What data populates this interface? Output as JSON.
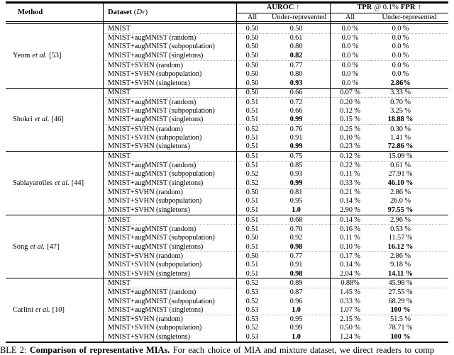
{
  "header": {
    "method": "Method",
    "dataset": {
      "label": "Dataset",
      "open": "(",
      "var": "D",
      "sup": "tr",
      "close": ")"
    },
    "auroc": "AUROC ↑",
    "tpr": {
      "tpr": "TPR",
      "at": "@ 0.1%",
      "fpr": "FPR",
      "arrow": "↑"
    },
    "sub": {
      "all": "All",
      "under": "Under-represented"
    }
  },
  "groups": [
    {
      "method": {
        "name": "Yeom",
        "etal": "et al.",
        "ref": "[53]"
      },
      "rows": [
        {
          "dataset": "MNIST",
          "values": [
            "0.50",
            "0.50",
            "0.0 %",
            "0.0 %"
          ],
          "bold": []
        },
        {
          "dataset": "MNIST+augMNIST (random)",
          "values": [
            "0.50",
            "0.61",
            "0.0 %",
            "0.0 %"
          ],
          "bold": []
        },
        {
          "dataset": "MNIST+augMNIST (subpopulation)",
          "values": [
            "0.50",
            "0.80",
            "0.0 %",
            "0.0 %"
          ],
          "bold": []
        },
        {
          "dataset": "MNIST+augMNIST (singletons)",
          "values": [
            "0.50",
            "0.82",
            "0.0 %",
            "0.0 %"
          ],
          "bold": [
            1
          ]
        },
        {
          "dataset": "MNIST+SVHN (random)",
          "values": [
            "0.50",
            "0.77",
            "0.0 %",
            "0.0 %"
          ],
          "bold": []
        },
        {
          "dataset": "MNIST+SVHN (subpopulation)",
          "values": [
            "0.50",
            "0.80",
            "0.0 %",
            "0.0 %"
          ],
          "bold": []
        },
        {
          "dataset": "MNIST+SVHN (singletons)",
          "values": [
            "0.50",
            "0.93",
            "0.0 %",
            "2.86%"
          ],
          "bold": [
            1,
            3
          ]
        }
      ]
    },
    {
      "method": {
        "name": "Shokri",
        "etal": "et al.",
        "ref": "[46]"
      },
      "rows": [
        {
          "dataset": "MNIST",
          "values": [
            "0.50",
            "0.66",
            "0.07 %",
            "3.33 %"
          ],
          "bold": []
        },
        {
          "dataset": "MNIST+augMNIST (random)",
          "values": [
            "0.51",
            "0.72",
            "0.20 %",
            "0.70 %"
          ],
          "bold": []
        },
        {
          "dataset": "MNIST+augMNIST (subpopulation)",
          "values": [
            "0.51",
            "0.66",
            "0.12 %",
            "3.25 %"
          ],
          "bold": []
        },
        {
          "dataset": "MNIST+augMNIST (singletons)",
          "values": [
            "0.51",
            "0.99",
            "0.15 %",
            "18.88 %"
          ],
          "bold": [
            1,
            3
          ]
        },
        {
          "dataset": "MNIST+SVHN (random)",
          "values": [
            "0.52",
            "0.76",
            "0.25 %",
            "0.30 %"
          ],
          "bold": []
        },
        {
          "dataset": "MNIST+SVHN (subpopulation)",
          "values": [
            "0.51",
            "0.91",
            "0.10 %",
            "1.41 %"
          ],
          "bold": []
        },
        {
          "dataset": "MNIST+SVHN (singletons)",
          "values": [
            "0.51",
            "0.99",
            "0.23 %",
            "72.86 %"
          ],
          "bold": [
            1,
            3
          ]
        }
      ]
    },
    {
      "method": {
        "name": "Sablayarolles",
        "etal": "et al.",
        "ref": "[44]"
      },
      "rows": [
        {
          "dataset": "MNIST",
          "values": [
            "0.51",
            "0.75",
            "0.12 %",
            "15.09 %"
          ],
          "bold": []
        },
        {
          "dataset": "MNIST+augMNIST (random)",
          "values": [
            "0.51",
            "0.85",
            "0.22 %",
            "0.61 %"
          ],
          "bold": []
        },
        {
          "dataset": "MNIST+augMNIST (subpopulation)",
          "values": [
            "0.52",
            "0.93",
            "0.11 %",
            "27.91 %"
          ],
          "bold": []
        },
        {
          "dataset": "MNIST+augMNIST (singletons)",
          "values": [
            "0.52",
            "0.99",
            "0.33 %",
            "46.10 %"
          ],
          "bold": [
            1,
            3
          ]
        },
        {
          "dataset": "MNIST+SVHN (random)",
          "values": [
            "0.50",
            "0.81",
            "0.21 %",
            "2.86 %"
          ],
          "bold": []
        },
        {
          "dataset": "MNIST+SVHN (subpopulation)",
          "values": [
            "0.51",
            "0.95",
            "0.14 %",
            "26.0 %"
          ],
          "bold": []
        },
        {
          "dataset": "MNIST+SVHN (singletons)",
          "values": [
            "0.51",
            "1.0",
            "2.90 %",
            "97.55 %"
          ],
          "bold": [
            1,
            3
          ]
        }
      ]
    },
    {
      "method": {
        "name": "Song",
        "etal": "et al.",
        "ref": "[47]"
      },
      "rows": [
        {
          "dataset": "MNIST",
          "values": [
            "0.51",
            "0.68",
            "0.14 %",
            "2.96 %"
          ],
          "bold": []
        },
        {
          "dataset": "MNIST+augMNIST (random)",
          "values": [
            "0.51",
            "0.70",
            "0.16 %",
            "0.53 %"
          ],
          "bold": []
        },
        {
          "dataset": "MNIST+augMNIST (subpopulation)",
          "values": [
            "0.50",
            "0.92",
            "0.11 %",
            "11.57 %"
          ],
          "bold": []
        },
        {
          "dataset": "MNIST+augMNIST (singletons)",
          "values": [
            "0.51",
            "0.98",
            "0.10 %",
            "16.12 %"
          ],
          "bold": [
            1,
            3
          ]
        },
        {
          "dataset": "MNIST+SVHN (random)",
          "values": [
            "0.50",
            "0.77",
            "0.17 %",
            "2.86 %"
          ],
          "bold": []
        },
        {
          "dataset": "MNIST+SVHN (subpopulation)",
          "values": [
            "0.51",
            "0.91",
            "0.14 %",
            "9.18 %"
          ],
          "bold": []
        },
        {
          "dataset": "MNIST+SVHN (singletons)",
          "values": [
            "0.51",
            "0.98",
            "2.04 %",
            "14.11 %"
          ],
          "bold": [
            1,
            3
          ]
        }
      ]
    },
    {
      "method": {
        "name": "Carlini",
        "etal": "et al.",
        "ref": "[10]"
      },
      "rows": [
        {
          "dataset": "MNIST",
          "values": [
            "0.52",
            "0.89",
            "0.88%",
            "45.98 %"
          ],
          "bold": []
        },
        {
          "dataset": "MNIST+augMNIST (random)",
          "values": [
            "0.53",
            "0.87",
            "1.45 %",
            "27.55 %"
          ],
          "bold": []
        },
        {
          "dataset": "MNIST+augMNIST (subpopulation)",
          "values": [
            "0.52",
            "0.96",
            "0.33 %",
            "68.29 %"
          ],
          "bold": []
        },
        {
          "dataset": "MNIST+augMNIST (singletons)",
          "values": [
            "0.53",
            "1.0",
            "1.07 %",
            "100 %"
          ],
          "bold": [
            1,
            3
          ]
        },
        {
          "dataset": "MNIST+SVHN (random)",
          "values": [
            "0.53",
            "0.95",
            "2.15 %",
            "51.5 %"
          ],
          "bold": []
        },
        {
          "dataset": "MNIST+SVHN (subpopulation)",
          "values": [
            "0.52",
            "0.99",
            "0.50 %",
            "78.71 %"
          ],
          "bold": []
        },
        {
          "dataset": "MNIST+SVHN (singletons)",
          "values": [
            "0.53",
            "1.0",
            "1.24 %",
            "100 %"
          ],
          "bold": [
            1,
            3
          ]
        }
      ]
    }
  ],
  "caption": {
    "lead": "BLE 2: ",
    "bold": "Comparison of representative MIAs.",
    "rest": " For each choice of MIA and mixture dataset, we direct readers to comp"
  }
}
